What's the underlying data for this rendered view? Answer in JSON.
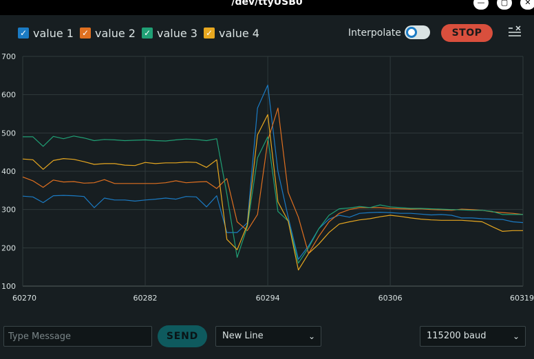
{
  "window": {
    "title": "/dev/ttyUSB0",
    "minimize_symbol": "—",
    "maximize_symbol": "▢",
    "close_symbol": "✕"
  },
  "legend": [
    {
      "label": "value 1",
      "color": "#1b7bc4",
      "checked": true
    },
    {
      "label": "value 2",
      "color": "#e07020",
      "checked": true
    },
    {
      "label": "value 3",
      "color": "#20a075",
      "checked": true
    },
    {
      "label": "value 4",
      "color": "#e8a820",
      "checked": true
    }
  ],
  "controls": {
    "interpolate_label": "Interpolate",
    "interpolate_on": true,
    "stop_label": "STOP"
  },
  "chart_data": {
    "type": "line",
    "xlim": [
      60270,
      60319
    ],
    "ylim": [
      100,
      700
    ],
    "x_ticks": [
      60270,
      60282,
      60294,
      60306,
      60319
    ],
    "y_ticks": [
      100,
      200,
      300,
      400,
      500,
      600,
      700
    ],
    "grid": true,
    "x": [
      60270,
      60271,
      60272,
      60273,
      60274,
      60275,
      60276,
      60277,
      60278,
      60279,
      60280,
      60281,
      60282,
      60283,
      60284,
      60285,
      60286,
      60287,
      60288,
      60289,
      60290,
      60291,
      60292,
      60293,
      60294,
      60295,
      60296,
      60297,
      60298,
      60299,
      60300,
      60301,
      60302,
      60303,
      60304,
      60305,
      60306,
      60307,
      60308,
      60309,
      60310,
      60311,
      60312,
      60313,
      60314,
      60315,
      60316,
      60317,
      60318,
      60319
    ],
    "series": [
      {
        "name": "value 1",
        "color": "#1b7bc4",
        "values": [
          335,
          333,
          318,
          336,
          337,
          336,
          334,
          305,
          330,
          325,
          325,
          322,
          325,
          327,
          330,
          327,
          334,
          333,
          307,
          336,
          240,
          240,
          265,
          565,
          625,
          400,
          280,
          170,
          205,
          250,
          275,
          285,
          280,
          290,
          292,
          293,
          292,
          290,
          290,
          288,
          286,
          287,
          285,
          278,
          278,
          276,
          275,
          274,
          268,
          266
        ]
      },
      {
        "name": "value 2",
        "color": "#e07020",
        "values": [
          385,
          375,
          358,
          377,
          372,
          373,
          369,
          370,
          378,
          368,
          368,
          368,
          368,
          368,
          370,
          375,
          370,
          372,
          373,
          355,
          381,
          268,
          245,
          287,
          480,
          565,
          345,
          280,
          185,
          230,
          268,
          290,
          300,
          305,
          305,
          305,
          303,
          302,
          301,
          302,
          300,
          299,
          298,
          301,
          300,
          298,
          294,
          292,
          290,
          287
        ]
      },
      {
        "name": "value 3",
        "color": "#20a075",
        "values": [
          490,
          490,
          465,
          491,
          485,
          492,
          487,
          480,
          483,
          482,
          480,
          481,
          482,
          480,
          479,
          482,
          484,
          483,
          480,
          485,
          340,
          175,
          255,
          435,
          490,
          295,
          270,
          160,
          200,
          250,
          285,
          302,
          304,
          308,
          305,
          312,
          307,
          305,
          303,
          303,
          302,
          301,
          300,
          299,
          298,
          298,
          295,
          287,
          287,
          287
        ]
      },
      {
        "name": "value 4",
        "color": "#e8a820",
        "values": [
          432,
          430,
          405,
          428,
          433,
          431,
          425,
          418,
          420,
          420,
          416,
          415,
          423,
          420,
          422,
          422,
          424,
          423,
          410,
          430,
          222,
          195,
          260,
          495,
          548,
          320,
          270,
          142,
          185,
          210,
          240,
          262,
          268,
          273,
          276,
          281,
          285,
          282,
          278,
          275,
          273,
          272,
          272,
          272,
          270,
          268,
          255,
          243,
          245,
          245
        ]
      }
    ]
  },
  "bottom": {
    "message_placeholder": "Type Message",
    "message_value": "",
    "send_label": "SEND",
    "line_ending": "New Line",
    "baud_rate": "115200 baud",
    "chevron": "⌄"
  }
}
